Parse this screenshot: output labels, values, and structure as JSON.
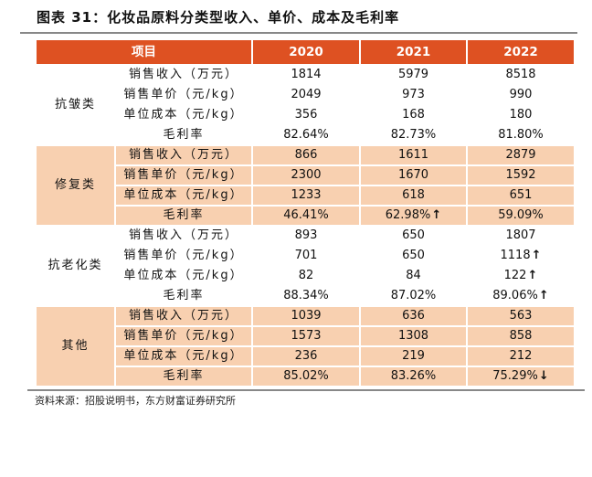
{
  "title": "图表 31：化妆品原料分类型收入、单价、成本及毛利率",
  "header": [
    "项目",
    "2020",
    "2021",
    "2022"
  ],
  "colors": {
    "header": "#DE5122",
    "peach": "#F8D0B0"
  },
  "groups": [
    {
      "name": "抗皱类",
      "shaded": false,
      "rows": [
        {
          "item": "销售收入（万元）",
          "values": [
            {
              "v": "1814"
            },
            {
              "v": "5979"
            },
            {
              "v": "8518"
            }
          ]
        },
        {
          "item": "销售单价（元/kg）",
          "values": [
            {
              "v": "2049"
            },
            {
              "v": "973"
            },
            {
              "v": "990"
            }
          ]
        },
        {
          "item": "单位成本（元/kg）",
          "values": [
            {
              "v": "356"
            },
            {
              "v": "168"
            },
            {
              "v": "180"
            }
          ]
        },
        {
          "item": "毛利率",
          "values": [
            {
              "v": "82.64%"
            },
            {
              "v": "82.73%"
            },
            {
              "v": "81.80%"
            }
          ]
        }
      ]
    },
    {
      "name": "修复类",
      "shaded": true,
      "rows": [
        {
          "item": "销售收入（万元）",
          "values": [
            {
              "v": "866"
            },
            {
              "v": "1611"
            },
            {
              "v": "2879"
            }
          ]
        },
        {
          "item": "销售单价（元/kg）",
          "values": [
            {
              "v": "2300"
            },
            {
              "v": "1670"
            },
            {
              "v": "1592"
            }
          ]
        },
        {
          "item": "单位成本（元/kg）",
          "values": [
            {
              "v": "1233"
            },
            {
              "v": "618"
            },
            {
              "v": "651"
            }
          ]
        },
        {
          "item": "毛利率",
          "values": [
            {
              "v": "46.41%"
            },
            {
              "v": "62.98%",
              "arrow": "↑"
            },
            {
              "v": "59.09%"
            }
          ]
        }
      ]
    },
    {
      "name": "抗老化类",
      "shaded": false,
      "rows": [
        {
          "item": "销售收入（万元）",
          "values": [
            {
              "v": "893"
            },
            {
              "v": "650"
            },
            {
              "v": "1807"
            }
          ]
        },
        {
          "item": "销售单价（元/kg）",
          "values": [
            {
              "v": "701"
            },
            {
              "v": "650"
            },
            {
              "v": "1118",
              "arrow": "↑"
            }
          ]
        },
        {
          "item": "单位成本（元/kg）",
          "values": [
            {
              "v": "82"
            },
            {
              "v": "84"
            },
            {
              "v": "122",
              "arrow": "↑"
            }
          ]
        },
        {
          "item": "毛利率",
          "values": [
            {
              "v": "88.34%"
            },
            {
              "v": "87.02%"
            },
            {
              "v": "89.06%",
              "arrow": "↑"
            }
          ]
        }
      ]
    },
    {
      "name": "其他",
      "shaded": true,
      "rows": [
        {
          "item": "销售收入（万元）",
          "values": [
            {
              "v": "1039"
            },
            {
              "v": "636"
            },
            {
              "v": "563"
            }
          ]
        },
        {
          "item": "销售单价（元/kg）",
          "values": [
            {
              "v": "1573"
            },
            {
              "v": "1308"
            },
            {
              "v": "858"
            }
          ]
        },
        {
          "item": "单位成本（元/kg）",
          "values": [
            {
              "v": "236"
            },
            {
              "v": "219"
            },
            {
              "v": "212"
            }
          ]
        },
        {
          "item": "毛利率",
          "values": [
            {
              "v": "85.02%"
            },
            {
              "v": "83.26%"
            },
            {
              "v": "75.29%",
              "arrow": "↓"
            }
          ]
        }
      ]
    }
  ],
  "source": "资料来源：招股说明书，东方财富证券研究所"
}
